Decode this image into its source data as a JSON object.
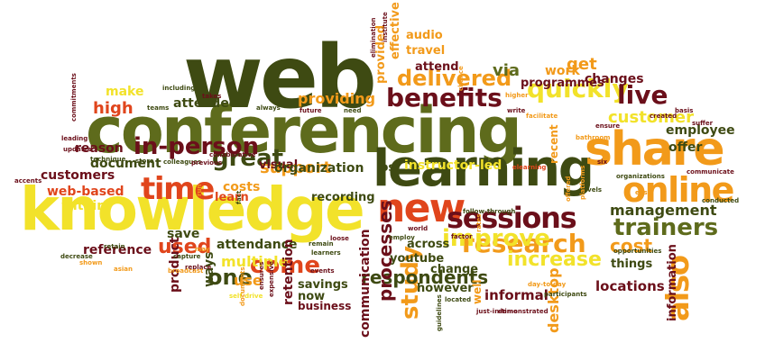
{
  "palette": {
    "dark_olive": "#3e4a12",
    "olive": "#5e6b1c",
    "yellow": "#f2e22a",
    "orange": "#f29a1a",
    "red": "#e0451c",
    "maroon": "#6b0f1a"
  },
  "words": [
    {
      "text": "web",
      "color": "#3e4a12"
    },
    {
      "text": "conferencing",
      "color": "#5e6b1c"
    },
    {
      "text": "knowledge",
      "color": "#f2e22a"
    },
    {
      "text": "learning",
      "color": "#3e4a12"
    },
    {
      "text": "share",
      "color": "#f29a1a"
    },
    {
      "text": "online",
      "color": "#f29a1a"
    },
    {
      "text": "new",
      "color": "#e0451c"
    },
    {
      "text": "time",
      "color": "#e0451c"
    },
    {
      "text": "sessions",
      "color": "#6b0f1a"
    },
    {
      "text": "benefits",
      "color": "#6b0f1a"
    },
    {
      "text": "quickly",
      "color": "#f2e22a"
    },
    {
      "text": "live",
      "color": "#6b0f1a"
    },
    {
      "text": "also",
      "color": "#f29a1a"
    },
    {
      "text": "research",
      "color": "#f29a1a"
    },
    {
      "text": "improve",
      "color": "#f2e22a"
    },
    {
      "text": "trainers",
      "color": "#5e6b1c"
    },
    {
      "text": "delivered",
      "color": "#f29a1a"
    },
    {
      "text": "great",
      "color": "#3e4a12"
    },
    {
      "text": "in-person",
      "color": "#6b0f1a"
    },
    {
      "text": "come",
      "color": "#e0451c"
    },
    {
      "text": "one",
      "color": "#3e4a12"
    },
    {
      "text": "used",
      "color": "#e0451c"
    },
    {
      "text": "study",
      "color": "#f29a1a"
    },
    {
      "text": "increase",
      "color": "#f2e22a"
    },
    {
      "text": "respondents",
      "color": "#3e4a12"
    },
    {
      "text": "processes",
      "color": "#6b0f1a"
    },
    {
      "text": "management",
      "color": "#3e4a12"
    },
    {
      "text": "cost",
      "color": "#f29a1a"
    },
    {
      "text": "customer",
      "color": "#f2e22a"
    },
    {
      "text": "get",
      "color": "#f29a1a"
    },
    {
      "text": "via",
      "color": "#5e6b1c"
    },
    {
      "text": "providing",
      "color": "#f29a1a"
    },
    {
      "text": "high",
      "color": "#e0451c"
    },
    {
      "text": "make",
      "color": "#f2e22a"
    },
    {
      "text": "attendees",
      "color": "#3e4a12"
    },
    {
      "text": "support",
      "color": "#f29a1a"
    },
    {
      "text": "reason",
      "color": "#6b0f1a"
    },
    {
      "text": "document",
      "color": "#3e4a12"
    },
    {
      "text": "customers",
      "color": "#6b0f1a"
    },
    {
      "text": "web-based",
      "color": "#e0451c"
    },
    {
      "text": "within",
      "color": "#f2e22a"
    },
    {
      "text": "reference",
      "color": "#6b0f1a"
    },
    {
      "text": "save",
      "color": "#3e4a12"
    },
    {
      "text": "attendance",
      "color": "#3e4a12"
    },
    {
      "text": "multiple",
      "color": "#f2e22a"
    },
    {
      "text": "use",
      "color": "#f29a1a"
    },
    {
      "text": "ways",
      "color": "#3e4a12"
    },
    {
      "text": "product",
      "color": "#6b0f1a"
    },
    {
      "text": "retention",
      "color": "#6b0f1a"
    },
    {
      "text": "savings",
      "color": "#3e4a12"
    },
    {
      "text": "now",
      "color": "#3e4a12"
    },
    {
      "text": "business",
      "color": "#6b0f1a"
    },
    {
      "text": "communication",
      "color": "#6b0f1a"
    },
    {
      "text": "however",
      "color": "#3e4a12"
    },
    {
      "text": "informal",
      "color": "#6b0f1a"
    },
    {
      "text": "desktop",
      "color": "#f29a1a"
    },
    {
      "text": "locations",
      "color": "#6b0f1a"
    },
    {
      "text": "information",
      "color": "#6b0f1a"
    },
    {
      "text": "things",
      "color": "#3e4a12"
    },
    {
      "text": "employee",
      "color": "#3e4a12"
    },
    {
      "text": "offer",
      "color": "#3e4a12"
    },
    {
      "text": "changes",
      "color": "#6b0f1a"
    },
    {
      "text": "work",
      "color": "#f29a1a"
    },
    {
      "text": "programmes",
      "color": "#6b0f1a"
    },
    {
      "text": "attend",
      "color": "#6b0f1a"
    },
    {
      "text": "travel",
      "color": "#f29a1a"
    },
    {
      "text": "audio",
      "color": "#f29a1a"
    },
    {
      "text": "effective",
      "color": "#f29a1a"
    },
    {
      "text": "provided",
      "color": "#f29a1a"
    },
    {
      "text": "visual",
      "color": "#6b0f1a"
    },
    {
      "text": "organization",
      "color": "#3e4a12"
    },
    {
      "text": "lost",
      "color": "#3e4a12"
    },
    {
      "text": "instructor-led",
      "color": "#f2e22a"
    },
    {
      "text": "costs",
      "color": "#f29a1a"
    },
    {
      "text": "learn",
      "color": "#e0451c"
    },
    {
      "text": "recording",
      "color": "#3e4a12"
    },
    {
      "text": "youtube",
      "color": "#3e4a12"
    },
    {
      "text": "across",
      "color": "#3e4a12"
    },
    {
      "text": "change",
      "color": "#3e4a12"
    },
    {
      "text": "recent",
      "color": "#f29a1a"
    },
    {
      "text": "well",
      "color": "#f29a1a"
    },
    {
      "text": "including",
      "color": "#3e4a12"
    },
    {
      "text": "takes",
      "color": "#6b0f1a"
    },
    {
      "text": "teams",
      "color": "#3e4a12"
    },
    {
      "text": "always",
      "color": "#3e4a12"
    },
    {
      "text": "future",
      "color": "#6b0f1a"
    },
    {
      "text": "need",
      "color": "#3e4a12"
    },
    {
      "text": "store",
      "color": "#3e4a12"
    },
    {
      "text": "colleagues",
      "color": "#3e4a12"
    },
    {
      "text": "previous",
      "color": "#6b0f1a"
    },
    {
      "text": "collaborative",
      "color": "#6b0f1a"
    },
    {
      "text": "updated",
      "color": "#6b0f1a"
    },
    {
      "text": "leading",
      "color": "#6b0f1a"
    },
    {
      "text": "technique",
      "color": "#3e4a12"
    },
    {
      "text": "accents",
      "color": "#6b0f1a"
    },
    {
      "text": "commitments",
      "color": "#6b0f1a"
    },
    {
      "text": "higher",
      "color": "#f29a1a"
    },
    {
      "text": "write",
      "color": "#6b0f1a"
    },
    {
      "text": "facilitate",
      "color": "#f29a1a"
    },
    {
      "text": "created",
      "color": "#6b0f1a"
    },
    {
      "text": "basis",
      "color": "#6b0f1a"
    },
    {
      "text": "ensure",
      "color": "#6b0f1a"
    },
    {
      "text": "suffer",
      "color": "#6b0f1a"
    },
    {
      "text": "bathroom",
      "color": "#f29a1a"
    },
    {
      "text": "elearning",
      "color": "#e0451c"
    },
    {
      "text": "communicate",
      "color": "#6b0f1a"
    },
    {
      "text": "organizations",
      "color": "#3e4a12"
    },
    {
      "text": "conducted",
      "color": "#3e4a12"
    },
    {
      "text": "easy",
      "color": "#f29a1a"
    },
    {
      "text": "opportunities",
      "color": "#3e4a12"
    },
    {
      "text": "levels",
      "color": "#3e4a12"
    },
    {
      "text": "six",
      "color": "#6b0f1a"
    },
    {
      "text": "offered",
      "color": "#f29a1a"
    },
    {
      "text": "platforms",
      "color": "#f29a1a"
    },
    {
      "text": "world",
      "color": "#6b0f1a"
    },
    {
      "text": "factor",
      "color": "#6b0f1a"
    },
    {
      "text": "follow-through",
      "color": "#3e4a12"
    },
    {
      "text": "rates",
      "color": "#f29a1a"
    },
    {
      "text": "employ",
      "color": "#3e4a12"
    },
    {
      "text": "loose",
      "color": "#6b0f1a"
    },
    {
      "text": "remain",
      "color": "#3e4a12"
    },
    {
      "text": "learners",
      "color": "#3e4a12"
    },
    {
      "text": "events",
      "color": "#6b0f1a"
    },
    {
      "text": "ensures",
      "color": "#6b0f1a"
    },
    {
      "text": "expensive",
      "color": "#6b0f1a"
    },
    {
      "text": "self-drive",
      "color": "#f2e22a"
    },
    {
      "text": "documents",
      "color": "#f29a1a"
    },
    {
      "text": "replace",
      "color": "#6b0f1a"
    },
    {
      "text": "capture",
      "color": "#3e4a12"
    },
    {
      "text": "broadcast",
      "color": "#f29a1a"
    },
    {
      "text": "may",
      "color": "#f29a1a"
    },
    {
      "text": "fact",
      "color": "#3e4a12"
    },
    {
      "text": "run",
      "color": "#f29a1a"
    },
    {
      "text": "retain",
      "color": "#3e4a12"
    },
    {
      "text": "decrease",
      "color": "#3e4a12"
    },
    {
      "text": "shown",
      "color": "#f29a1a"
    },
    {
      "text": "asian",
      "color": "#f29a1a"
    },
    {
      "text": "located",
      "color": "#3e4a12"
    },
    {
      "text": "guidelines",
      "color": "#3e4a12"
    },
    {
      "text": "just-in-time",
      "color": "#6b0f1a"
    },
    {
      "text": "demonstrated",
      "color": "#6b0f1a"
    },
    {
      "text": "day-to-day",
      "color": "#f29a1a"
    },
    {
      "text": "participants",
      "color": "#3e4a12"
    },
    {
      "text": "elimination",
      "color": "#6b0f1a"
    },
    {
      "text": "institute",
      "color": "#6b0f1a"
    },
    {
      "text": "chance",
      "color": "#f29a1a"
    },
    {
      "text": "limiting",
      "color": "#f29a1a"
    }
  ]
}
